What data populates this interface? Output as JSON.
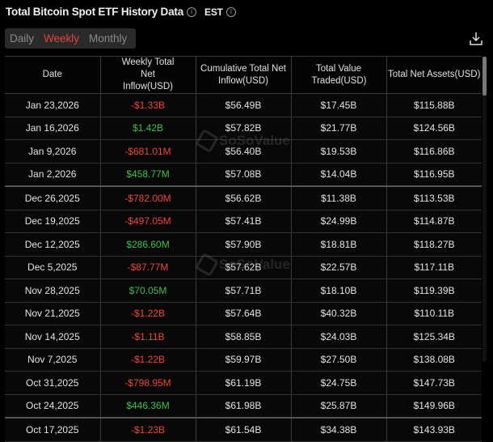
{
  "header": {
    "title": "Total Bitcoin Spot ETF History Data",
    "timezone": "EST"
  },
  "tabs": [
    {
      "label": "Daily",
      "active": false
    },
    {
      "label": "Weekly",
      "active": true
    },
    {
      "label": "Monthly",
      "active": false
    }
  ],
  "icons": {
    "download": "download-icon",
    "info": "info-icon"
  },
  "colors": {
    "negative": "#f0453a",
    "positive": "#3ec04a",
    "active_tab": "#e8413a"
  },
  "watermark": "SoSoValue",
  "table": {
    "columns": [
      "Date",
      "Weekly Total Net Inflow(USD)",
      "Cumulative Total Net Inflow(USD)",
      "Total Value Traded(USD)",
      "Total Net Assets(USD)"
    ],
    "rows": [
      {
        "date": "Jan 23,2026",
        "weekly": "-$1.33B",
        "cumulative": "$56.49B",
        "traded": "$17.45B",
        "assets": "$115.88B"
      },
      {
        "date": "Jan 16,2026",
        "weekly": "$1.42B",
        "cumulative": "$57.82B",
        "traded": "$21.77B",
        "assets": "$124.56B"
      },
      {
        "date": "Jan 9,2026",
        "weekly": "-$681.01M",
        "cumulative": "$56.40B",
        "traded": "$19.53B",
        "assets": "$116.86B"
      },
      {
        "date": "Jan 2,2026",
        "weekly": "$458.77M",
        "cumulative": "$57.08B",
        "traded": "$14.04B",
        "assets": "$116.95B"
      },
      {
        "date": "Dec 26,2025",
        "weekly": "-$782.00M",
        "cumulative": "$56.62B",
        "traded": "$11.38B",
        "assets": "$113.53B"
      },
      {
        "date": "Dec 19,2025",
        "weekly": "-$497.05M",
        "cumulative": "$57.41B",
        "traded": "$24.99B",
        "assets": "$114.87B"
      },
      {
        "date": "Dec 12,2025",
        "weekly": "$286.60M",
        "cumulative": "$57.90B",
        "traded": "$18.81B",
        "assets": "$118.27B"
      },
      {
        "date": "Dec 5,2025",
        "weekly": "-$87.77M",
        "cumulative": "$57.62B",
        "traded": "$22.57B",
        "assets": "$117.11B"
      },
      {
        "date": "Nov 28,2025",
        "weekly": "$70.05M",
        "cumulative": "$57.71B",
        "traded": "$18.10B",
        "assets": "$119.39B"
      },
      {
        "date": "Nov 21,2025",
        "weekly": "-$1.22B",
        "cumulative": "$57.64B",
        "traded": "$40.32B",
        "assets": "$110.11B"
      },
      {
        "date": "Nov 14,2025",
        "weekly": "-$1.11B",
        "cumulative": "$58.85B",
        "traded": "$24.03B",
        "assets": "$125.34B"
      },
      {
        "date": "Nov 7,2025",
        "weekly": "-$1.22B",
        "cumulative": "$59.97B",
        "traded": "$27.50B",
        "assets": "$138.08B"
      },
      {
        "date": "Oct 31,2025",
        "weekly": "-$798.95M",
        "cumulative": "$61.19B",
        "traded": "$24.75B",
        "assets": "$147.73B"
      },
      {
        "date": "Oct 24,2025",
        "weekly": "$446.36M",
        "cumulative": "$61.98B",
        "traded": "$25.87B",
        "assets": "$149.96B"
      },
      {
        "date": "Oct 17,2025",
        "weekly": "-$1.23B",
        "cumulative": "$61.54B",
        "traded": "$34.38B",
        "assets": "$143.93B"
      }
    ]
  }
}
